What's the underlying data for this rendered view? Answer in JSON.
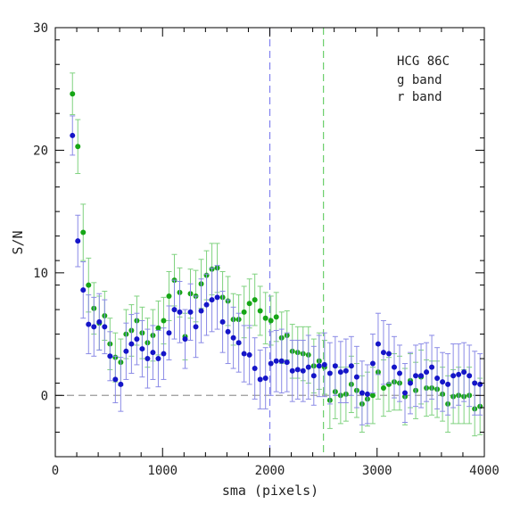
{
  "chart_data": {
    "type": "scatter",
    "xlabel": "sma (pixels)",
    "ylabel": "S/N",
    "xlim": [
      0,
      4000
    ],
    "ylim": [
      -5,
      30
    ],
    "x_ticks": [
      0,
      1000,
      2000,
      3000,
      4000
    ],
    "y_ticks": [
      0,
      10,
      20,
      30
    ],
    "grid": false,
    "legend_placement": "top-right",
    "legend_title": "HCG 86C",
    "reference_lines": {
      "horizontal_zero": 0,
      "vertical_g": 2000,
      "vertical_r": 2500
    },
    "series": [
      {
        "name": "g band",
        "color": "#1515c8",
        "x": [
          160,
          210,
          260,
          310,
          360,
          410,
          460,
          510,
          560,
          610,
          660,
          710,
          760,
          810,
          860,
          910,
          960,
          1010,
          1060,
          1110,
          1160,
          1210,
          1260,
          1310,
          1360,
          1410,
          1460,
          1510,
          1560,
          1610,
          1660,
          1710,
          1760,
          1810,
          1860,
          1910,
          1960,
          2010,
          2060,
          2110,
          2160,
          2210,
          2260,
          2310,
          2360,
          2410,
          2460,
          2510,
          2560,
          2610,
          2660,
          2710,
          2760,
          2810,
          2860,
          2910,
          2960,
          3010,
          3060,
          3110,
          3160,
          3210,
          3260,
          3310,
          3360,
          3410,
          3460,
          3510,
          3560,
          3610,
          3660,
          3710,
          3760,
          3810,
          3860,
          3910,
          3960
        ],
        "y": [
          21.2,
          12.6,
          8.6,
          5.8,
          5.6,
          6.0,
          5.6,
          3.2,
          1.3,
          0.9,
          3.6,
          4.2,
          4.6,
          3.8,
          3.0,
          3.5,
          3.0,
          3.4,
          5.1,
          7.0,
          6.8,
          4.6,
          6.8,
          5.6,
          6.9,
          7.4,
          7.8,
          8.0,
          6.0,
          5.2,
          4.7,
          4.3,
          3.4,
          3.3,
          2.2,
          1.3,
          1.4,
          2.6,
          2.8,
          2.8,
          2.7,
          2.0,
          2.1,
          2.0,
          2.3,
          1.6,
          2.4,
          2.5,
          1.8,
          2.4,
          1.9,
          2.0,
          2.4,
          1.5,
          0.2,
          0.1,
          2.6,
          4.2,
          3.5,
          3.4,
          2.3,
          1.8,
          0.2,
          1.0,
          1.6,
          1.6,
          1.9,
          2.3,
          1.4,
          1.1,
          0.9,
          1.6,
          1.7,
          1.9,
          1.6,
          1.0,
          0.9
        ],
        "err": [
          1.6,
          2.1,
          2.3,
          2.4,
          2.4,
          2.3,
          2.2,
          2.0,
          1.9,
          2.2,
          2.3,
          2.4,
          2.1,
          2.3,
          2.4,
          2.2,
          2.3,
          2.1,
          2.2,
          2.4,
          2.5,
          2.4,
          2.3,
          2.5,
          2.6,
          2.5,
          2.6,
          2.6,
          2.5,
          2.6,
          2.5,
          2.4,
          2.3,
          2.4,
          2.5,
          2.4,
          2.5,
          2.6,
          2.5,
          2.6,
          2.4,
          2.5,
          2.4,
          2.5,
          2.6,
          2.4,
          2.5,
          2.6,
          2.5,
          2.4,
          2.5,
          2.6,
          2.4,
          2.5,
          2.6,
          2.4,
          2.4,
          2.5,
          2.6,
          2.4,
          2.5,
          2.3,
          2.4,
          2.5,
          2.5,
          2.6,
          2.4,
          2.6,
          2.5,
          2.4,
          2.5,
          2.6,
          2.5,
          2.4,
          2.5,
          2.6,
          2.5
        ]
      },
      {
        "name": "r band",
        "color": "#16a616",
        "x": [
          160,
          210,
          260,
          310,
          360,
          410,
          460,
          510,
          560,
          610,
          660,
          710,
          760,
          810,
          860,
          910,
          960,
          1010,
          1060,
          1110,
          1160,
          1210,
          1260,
          1310,
          1360,
          1410,
          1460,
          1510,
          1560,
          1610,
          1660,
          1710,
          1760,
          1810,
          1860,
          1910,
          1960,
          2010,
          2060,
          2110,
          2160,
          2210,
          2260,
          2310,
          2360,
          2410,
          2460,
          2510,
          2560,
          2610,
          2660,
          2710,
          2760,
          2810,
          2860,
          2910,
          2960,
          3010,
          3060,
          3110,
          3160,
          3210,
          3260,
          3310,
          3360,
          3410,
          3460,
          3510,
          3560,
          3610,
          3660,
          3710,
          3760,
          3810,
          3860,
          3910,
          3960
        ],
        "y": [
          24.6,
          20.3,
          13.3,
          9.0,
          7.1,
          5.9,
          6.5,
          4.2,
          3.1,
          2.7,
          5.0,
          5.3,
          6.1,
          5.1,
          4.3,
          4.9,
          5.5,
          6.1,
          8.1,
          9.4,
          8.4,
          4.8,
          8.3,
          8.1,
          9.1,
          9.8,
          10.3,
          10.4,
          8.0,
          7.7,
          6.2,
          6.2,
          6.8,
          7.5,
          7.8,
          6.9,
          6.3,
          6.1,
          6.4,
          4.7,
          4.9,
          3.6,
          3.5,
          3.4,
          3.3,
          2.4,
          2.8,
          2.3,
          -0.4,
          0.3,
          0.0,
          0.1,
          0.9,
          0.4,
          -0.7,
          -0.3,
          0.0,
          1.9,
          0.6,
          0.9,
          1.1,
          1.0,
          -0.1,
          1.2,
          0.4,
          1.5,
          0.6,
          0.6,
          0.5,
          0.1,
          -0.7,
          -0.1,
          0.0,
          -0.1,
          0.0,
          -1.1,
          -0.9
        ],
        "err": [
          1.7,
          2.2,
          2.3,
          2.2,
          2.1,
          2.2,
          2.0,
          2.1,
          2.0,
          1.9,
          2.0,
          2.1,
          2.0,
          2.1,
          2.0,
          2.1,
          2.2,
          1.9,
          2.0,
          2.1,
          2.0,
          1.9,
          2.0,
          2.1,
          2.0,
          2.0,
          2.1,
          2.0,
          2.1,
          2.0,
          2.1,
          2.0,
          2.1,
          2.0,
          2.1,
          2.0,
          2.1,
          2.0,
          2.0,
          2.1,
          2.0,
          2.2,
          2.1,
          2.2,
          2.3,
          2.2,
          2.3,
          2.2,
          2.3,
          2.2,
          2.3,
          2.2,
          2.3,
          2.2,
          2.3,
          2.2,
          2.3,
          2.2,
          2.3,
          2.2,
          2.3,
          2.2,
          2.3,
          2.2,
          2.3,
          2.2,
          2.3,
          2.2,
          2.3,
          2.2,
          2.3,
          2.2,
          2.3,
          2.2,
          2.3,
          2.2,
          2.3
        ]
      }
    ]
  }
}
